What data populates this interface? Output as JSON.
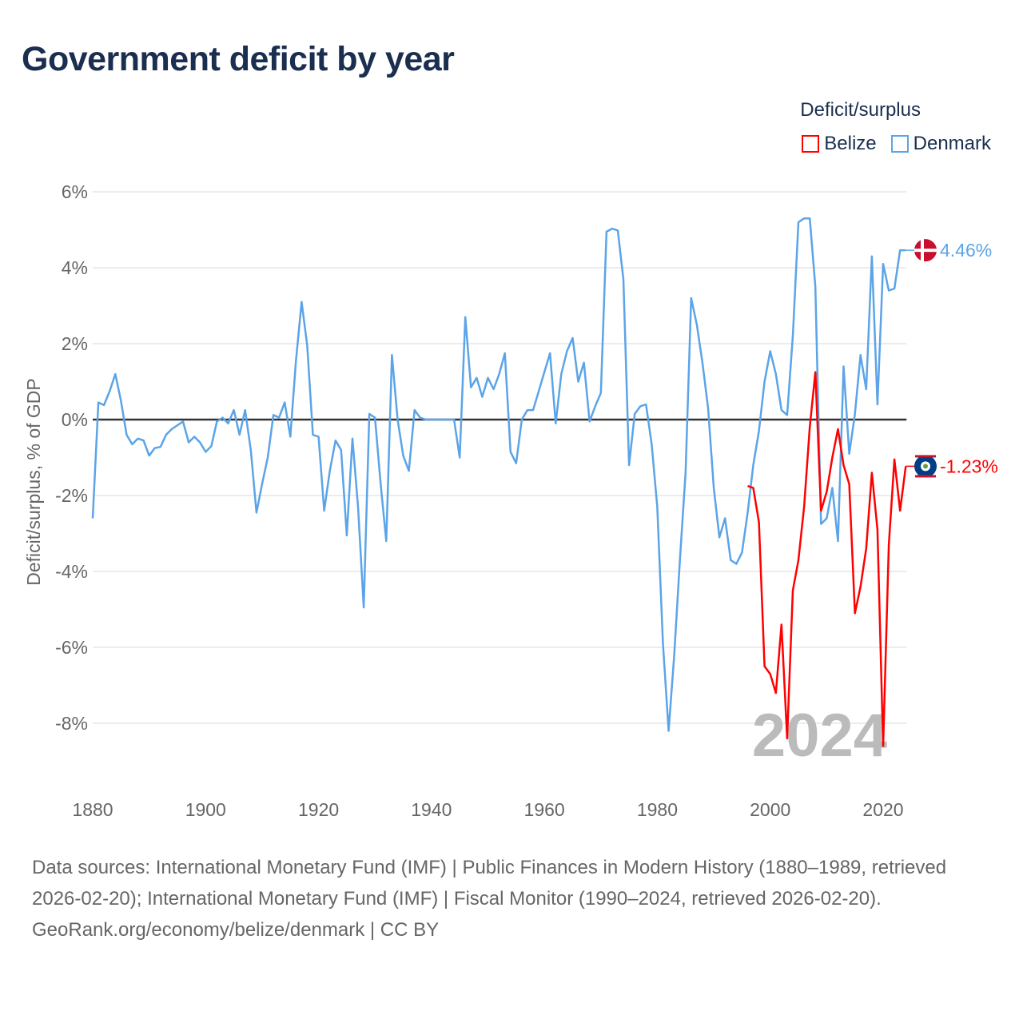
{
  "title": "Government deficit by year",
  "legend": {
    "title": "Deficit/surplus",
    "items": [
      {
        "name": "Belize",
        "color": "#ff0000"
      },
      {
        "name": "Denmark",
        "color": "#5ba4e8"
      }
    ]
  },
  "watermark_year": "2024",
  "footer": {
    "sources": "Data sources: International Monetary Fund (IMF) | Public Finances in Modern History (1880–1989, retrieved 2026-02-20); International Monetary Fund (IMF) | Fiscal Monitor (1990–2024, retrieved 2026-02-20).",
    "credit": "GeoRank.org/economy/belize/denmark | CC BY"
  },
  "chart_data": {
    "type": "line",
    "title": "Government deficit by year",
    "ylabel": "Deficit/surplus, % of GDP",
    "xlabel": "",
    "xlim": [
      1880,
      2024
    ],
    "ylim": [
      -9.2,
      6
    ],
    "xticks": [
      1880,
      1900,
      1920,
      1940,
      1960,
      1980,
      2000,
      2020
    ],
    "xtick_labels": [
      "1880",
      "1900",
      "1920",
      "1940",
      "1960",
      "1980",
      "2000",
      "2020"
    ],
    "yticks": [
      6,
      4,
      2,
      0,
      -2,
      -4,
      -6,
      -8
    ],
    "ytick_labels": [
      "6%",
      "4%",
      "2%",
      "0%",
      "-2%",
      "-4%",
      "-6%",
      "-8%"
    ],
    "grid": true,
    "legend_position": "top-right",
    "series": [
      {
        "name": "Denmark",
        "color": "#5ba4e8",
        "end_label": "4.46%",
        "flag": "denmark",
        "start_year": 1880,
        "values": [
          -2.6,
          0.45,
          0.38,
          0.75,
          1.2,
          0.5,
          -0.4,
          -0.65,
          -0.5,
          -0.55,
          -0.95,
          -0.75,
          -0.72,
          -0.4,
          -0.25,
          -0.15,
          -0.05,
          -0.6,
          -0.45,
          -0.6,
          -0.85,
          -0.7,
          -0.05,
          0.05,
          -0.1,
          0.25,
          -0.4,
          0.25,
          -0.8,
          -2.45,
          -1.7,
          -1.0,
          0.12,
          0.05,
          0.45,
          -0.45,
          1.55,
          3.1,
          1.95,
          -0.4,
          -0.45,
          -2.4,
          -1.35,
          -0.55,
          -0.8,
          -3.05,
          -0.5,
          -2.3,
          -4.95,
          0.15,
          0.05,
          -1.7,
          -3.2,
          1.7,
          0,
          -0.95,
          -1.35,
          0.25,
          0.05,
          0,
          0,
          0,
          0,
          0,
          0,
          -1.0,
          2.7,
          0.85,
          1.1,
          0.6,
          1.1,
          0.8,
          1.2,
          1.75,
          -0.85,
          -1.15,
          0,
          0.25,
          0.25,
          0.75,
          1.25,
          1.75,
          -0.1,
          1.2,
          1.8,
          2.15,
          1.0,
          1.5,
          -0.05,
          0.35,
          0.7,
          4.95,
          5.03,
          4.98,
          3.7,
          -1.2,
          0.15,
          0.35,
          0.4,
          -0.65,
          -2.3,
          -5.9,
          -8.2,
          -6.2,
          -3.7,
          -1.4,
          3.2,
          2.5,
          1.5,
          0.3,
          -1.8,
          -3.1,
          -2.6,
          -3.7,
          -3.8,
          -3.5,
          -2.45,
          -1.2,
          -0.3,
          1.0,
          1.8,
          1.2,
          0.25,
          0.12,
          2.2,
          5.2,
          5.3,
          5.3,
          3.5,
          -2.75,
          -2.6,
          -1.8,
          -3.2,
          1.4,
          -0.9,
          0.15,
          1.7,
          0.8,
          4.3,
          0.4,
          4.1,
          3.4,
          3.45,
          4.46,
          4.46
        ]
      },
      {
        "name": "Belize",
        "color": "#ff0000",
        "end_label": "-1.23%",
        "flag": "belize",
        "start_year": 1996,
        "values": [
          -1.75,
          -1.8,
          -2.7,
          -6.5,
          -6.7,
          -7.2,
          -5.4,
          -8.4,
          -4.5,
          -3.7,
          -2.3,
          -0.2,
          1.25,
          -2.4,
          -1.9,
          -1.0,
          -0.25,
          -1.2,
          -1.7,
          -5.1,
          -4.4,
          -3.4,
          -1.4,
          -2.9,
          -8.6,
          -3.3,
          -1.05,
          -2.4,
          -1.23
        ]
      }
    ]
  }
}
